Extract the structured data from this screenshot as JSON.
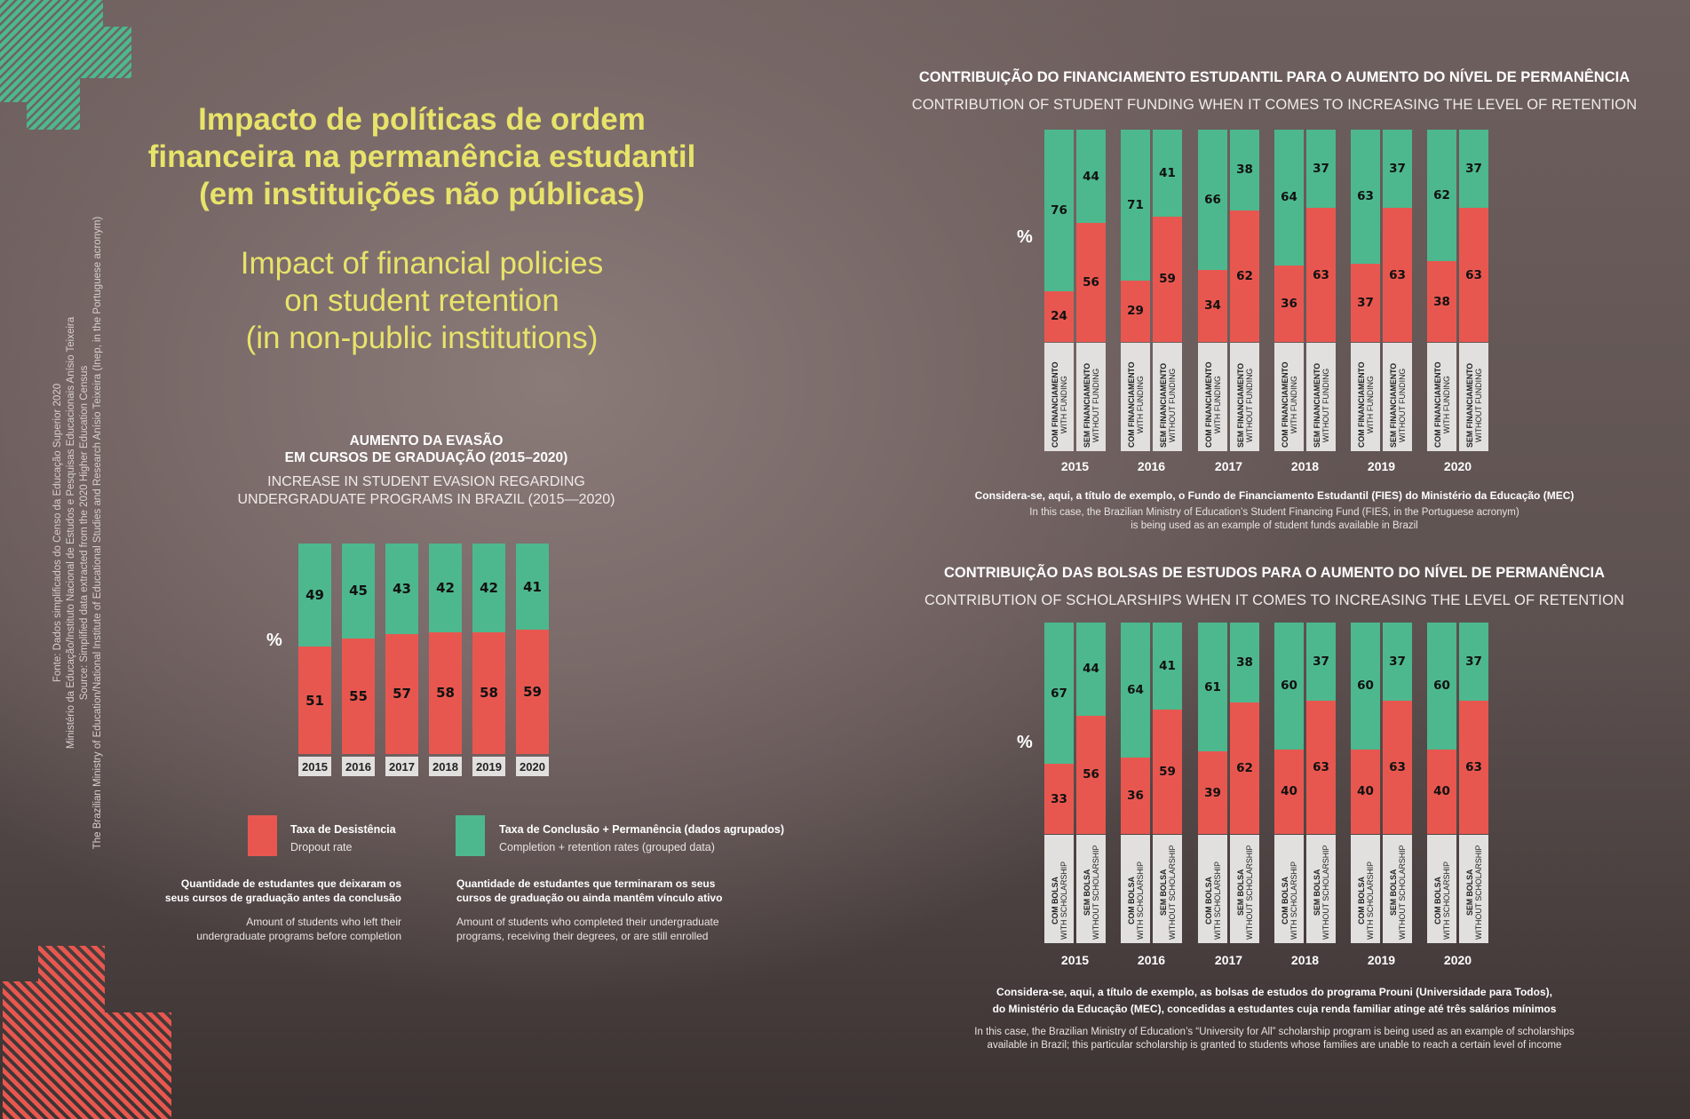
{
  "title": {
    "pt_lines": [
      "Impacto de políticas de ordem",
      "financeira na permanência estudantil",
      "(em instituições não públicas)"
    ],
    "en_lines": [
      "Impact of financial policies",
      "on student retention",
      "(in non-public institutions)"
    ]
  },
  "source": {
    "lines": [
      "Fonte: Dados simplificados do Censo da Educação Superior 2020",
      "Ministério da Educação/Instituto Nacional de Estudos e Pesquisas Educacionais Anísio Teixeira",
      "Source: Simplified data extracted from the 2020 Higher Education Census",
      "The Brazilian Ministry of Education/National Institute of Educational Studies and Research Anísio Teixeira (Inep, in the Portuguese acronym)"
    ]
  },
  "colors": {
    "dropout": "#e8574f",
    "retention": "#4db88e",
    "title": "#e8e36a",
    "label_box": "#e2e0df"
  },
  "legend": {
    "dropout": {
      "label_pt": "Taxa de Desistência",
      "label_en": "Dropout rate",
      "desc_pt": [
        "Quantidade de estudantes que deixaram os",
        "seus cursos de graduação antes da conclusão"
      ],
      "desc_en": [
        "Amount of students who left their",
        "undergraduate programs before completion"
      ]
    },
    "retention": {
      "label_pt": "Taxa de Conclusão +  Permanência (dados agrupados)",
      "label_en": "Completion + retention rates (grouped data)",
      "desc_pt": [
        "Quantidade de estudantes que terminaram os seus",
        "cursos de graduação ou ainda mantêm vínculo ativo"
      ],
      "desc_en": [
        "Amount of students who completed their undergraduate",
        "programs, receiving their degrees, or are still enrolled"
      ]
    }
  },
  "chart_data": [
    {
      "id": "evasion",
      "type": "bar",
      "stacked": true,
      "title": "AUMENTO DA EVASÃO EM CURSOS DE GRADUAÇÃO (2015–2020)",
      "title_lines": [
        "AUMENTO DA EVASÃO",
        "EM CURSOS DE GRADUAÇÃO (2015–2020)"
      ],
      "subtitle_lines": [
        "INCREASE IN STUDENT EVASION REGARDING",
        "UNDERGRADUATE PROGRAMS IN BRAZIL (2015—2020)"
      ],
      "ylabel": "%",
      "ylim": [
        0,
        100
      ],
      "categories": [
        "2015",
        "2016",
        "2017",
        "2018",
        "2019",
        "2020"
      ],
      "series": [
        {
          "name": "Taxa de Desistência / Dropout rate",
          "values": [
            51,
            55,
            57,
            58,
            58,
            59
          ]
        },
        {
          "name": "Taxa de Conclusão + Permanência / Completion + retention rates",
          "values": [
            49,
            45,
            43,
            42,
            42,
            41
          ]
        }
      ]
    },
    {
      "id": "funding",
      "type": "bar",
      "stacked": true,
      "title": "CONTRIBUIÇÃO DO FINANCIAMENTO ESTUDANTIL PARA O AUMENTO DO NÍVEL DE PERMANÊNCIA",
      "subtitle": "CONTRIBUTION OF STUDENT FUNDING WHEN IT COMES TO INCREASING THE LEVEL OF RETENTION",
      "ylabel": "%",
      "ylim": [
        0,
        100
      ],
      "categories": [
        "2015",
        "2016",
        "2017",
        "2018",
        "2019",
        "2020"
      ],
      "groups": [
        {
          "label_pt": "COM FINANCIAMENTO",
          "label_en": "WITH FUNDING",
          "dropout": [
            24,
            29,
            34,
            36,
            37,
            38
          ],
          "retention": [
            76,
            71,
            66,
            64,
            63,
            62
          ]
        },
        {
          "label_pt": "SEM FINANCIAMENTO",
          "label_en": "WITHOUT FUNDING",
          "dropout": [
            56,
            59,
            62,
            63,
            63,
            63
          ],
          "retention": [
            44,
            41,
            38,
            37,
            37,
            37
          ]
        }
      ],
      "caption_pt": "Considera-se, aqui, a título de exemplo, o Fundo de Financiamento Estudantil (FIES) do Ministério da Educação (MEC)",
      "caption_en_lines": [
        "In this case, the Brazilian Ministry of Education’s Student Financing Fund (FIES, in the Portuguese acronym)",
        "is being used as an example of student funds available in Brazil"
      ]
    },
    {
      "id": "scholarship",
      "type": "bar",
      "stacked": true,
      "title": "CONTRIBUIÇÃO DAS BOLSAS DE ESTUDOS PARA O AUMENTO DO NÍVEL DE PERMANÊNCIA",
      "subtitle": "CONTRIBUTION OF SCHOLARSHIPS WHEN IT COMES TO INCREASING THE LEVEL OF RETENTION",
      "ylabel": "%",
      "ylim": [
        0,
        100
      ],
      "categories": [
        "2015",
        "2016",
        "2017",
        "2018",
        "2019",
        "2020"
      ],
      "groups": [
        {
          "label_pt": "COM BOLSA",
          "label_en": "WITH SCHOLARSHIP",
          "dropout": [
            33,
            36,
            39,
            40,
            40,
            40
          ],
          "retention": [
            67,
            64,
            61,
            60,
            60,
            60
          ]
        },
        {
          "label_pt": "SEM BOLSA",
          "label_en": "WITHOUT SCHOLARSHIP",
          "dropout": [
            56,
            59,
            62,
            63,
            63,
            63
          ],
          "retention": [
            44,
            41,
            38,
            37,
            37,
            37
          ]
        }
      ],
      "caption_pt_lines": [
        "Considera-se, aqui, a título de exemplo, as bolsas de estudos do programa Prouni (Universidade para Todos),",
        "do Ministério da Educação (MEC), concedidas a estudantes cuja renda familiar atinge até três salários mínimos"
      ],
      "caption_en_lines": [
        "In this case, the Brazilian Ministry of Education’s “University for All” scholarship program is being used as an example of scholarships",
        "available in Brazil; this particular scholarship is granted to students whose families are unable to reach a certain level of income"
      ]
    }
  ]
}
